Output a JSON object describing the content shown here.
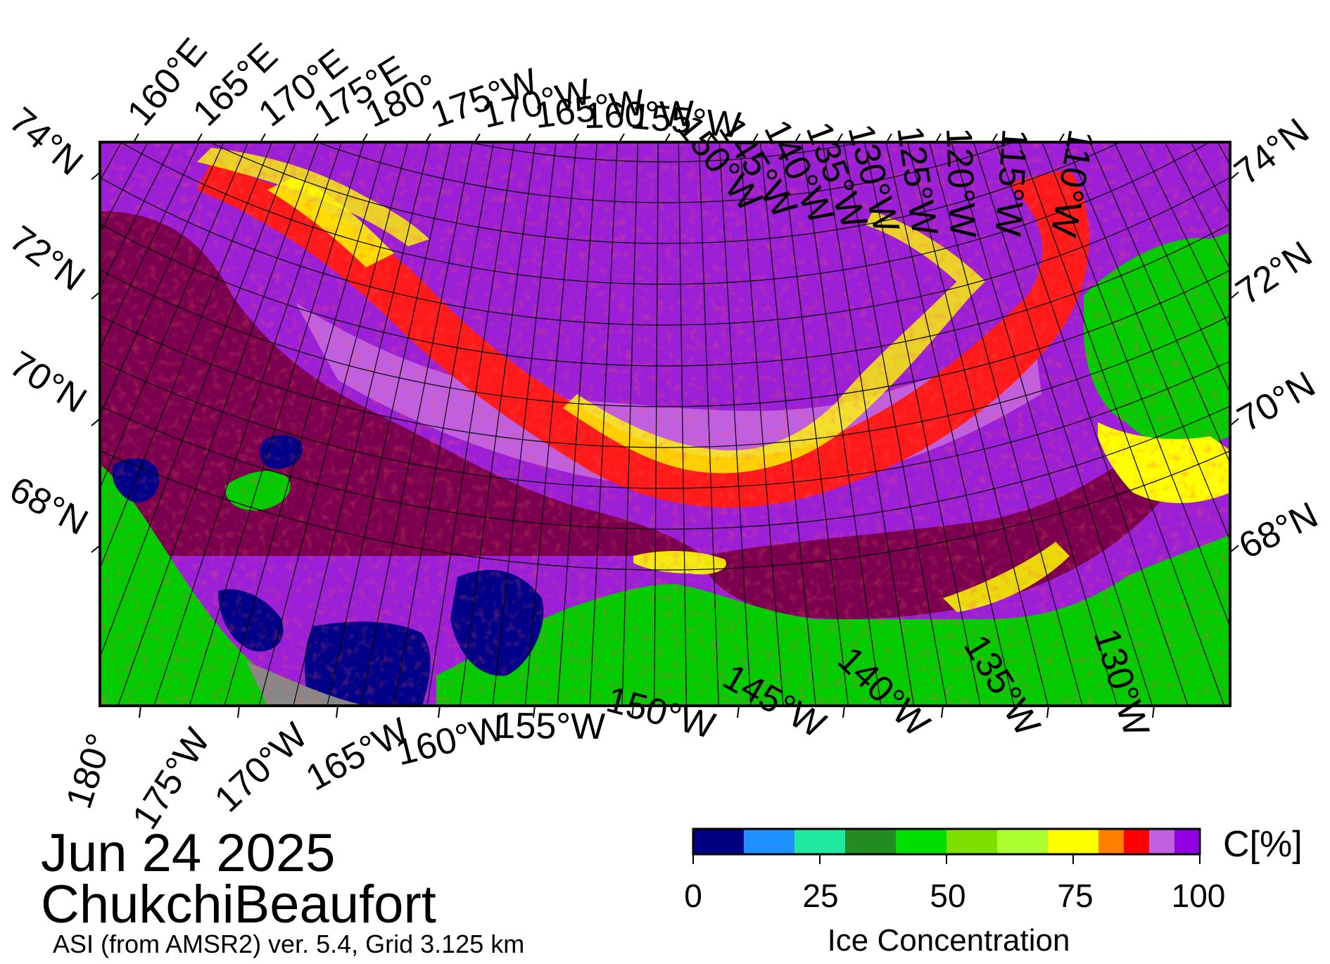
{
  "map": {
    "date": "Jun 24 2025",
    "region": "ChukchiBeaufort",
    "product": "ASI (from AMSR2) ver. 5.4,  Grid 3.125 km",
    "colors": {
      "land": "#00cc00",
      "open_water": "#000088",
      "no_data": "#888888",
      "ice_100": "#7a004f",
      "ice_95": "#9b1fd6",
      "ice_90": "#c060e0",
      "ice_85": "#ff1a1a",
      "ice_80": "#ff8000",
      "ice_75": "#ffff00"
    }
  },
  "graticule": {
    "top_lon_labels": [
      "160°E",
      "165°E",
      "170°E",
      "175°E",
      "180°",
      "175°W",
      "170°W",
      "165°W",
      "160°W",
      "155°W",
      "150°W",
      "145°W",
      "140°W",
      "135°W",
      "130°W",
      "125°W",
      "120°W",
      "115°W",
      "110°W"
    ],
    "bottom_lon_labels": [
      "180°",
      "175°W",
      "170°W",
      "165°W",
      "160°W",
      "155°W",
      "150°W",
      "145°W",
      "140°W",
      "135°W",
      "130°W"
    ],
    "left_lat_labels": [
      "74°N",
      "72°N",
      "70°N",
      "68°N"
    ],
    "right_lat_labels": [
      "74°N",
      "72°N",
      "70°N",
      "68°N"
    ]
  },
  "colorbar": {
    "title": "Ice Concentration",
    "unit": "C[%]",
    "ticks": [
      "0",
      "25",
      "50",
      "75",
      "100"
    ],
    "bins": [
      {
        "from": 0,
        "to": 10,
        "color": "#000080"
      },
      {
        "from": 10,
        "to": 20,
        "color": "#1e90ff"
      },
      {
        "from": 20,
        "to": 30,
        "color": "#20e8a0"
      },
      {
        "from": 30,
        "to": 40,
        "color": "#228b22"
      },
      {
        "from": 40,
        "to": 50,
        "color": "#00e000"
      },
      {
        "from": 50,
        "to": 60,
        "color": "#7fe000"
      },
      {
        "from": 60,
        "to": 70,
        "color": "#adff2f"
      },
      {
        "from": 70,
        "to": 80,
        "color": "#ffff00"
      },
      {
        "from": 80,
        "to": 85,
        "color": "#ff8000"
      },
      {
        "from": 85,
        "to": 90,
        "color": "#ff0000"
      },
      {
        "from": 90,
        "to": 95,
        "color": "#c060e0"
      },
      {
        "from": 95,
        "to": 100,
        "color": "#9000e0"
      }
    ]
  }
}
